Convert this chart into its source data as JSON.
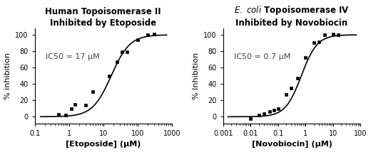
{
  "plot1": {
    "title_line1": "Human Topoisomerase II",
    "title_line2": "Inhibited by Etoposide",
    "xlabel": "[Etoposide] (μM)",
    "ylabel": "% inhibition",
    "ic50_text": "IC50 = 17 μM",
    "ic50": 17.0,
    "hill": 1.6,
    "xmin": 0.1,
    "xmax": 1000,
    "ymin": -8,
    "ymax": 108,
    "data_x": [
      0.5,
      0.8,
      1.2,
      1.5,
      3.0,
      5.0,
      15.0,
      25.0,
      35.0,
      50.0,
      100.0,
      200.0,
      300.0
    ],
    "data_y": [
      3,
      2,
      10,
      15,
      14,
      31,
      50,
      67,
      79,
      79,
      94,
      100,
      101
    ]
  },
  "plot2": {
    "title_line2": "Inhibited by Novobiocin",
    "xlabel": "[Novobiocin] (μM)",
    "ylabel": "% Inhibition",
    "ic50_text": "IC50 = 0.7 μM",
    "ic50": 0.7,
    "hill": 1.5,
    "xmin": 0.001,
    "xmax": 100,
    "ymin": -8,
    "ymax": 108,
    "data_x": [
      0.01,
      0.02,
      0.03,
      0.05,
      0.07,
      0.1,
      0.2,
      0.3,
      0.5,
      1.0,
      2.0,
      3.0,
      5.0,
      10.0,
      15.0
    ],
    "data_y": [
      -2,
      2,
      4,
      6,
      8,
      10,
      27,
      35,
      47,
      72,
      90,
      91,
      100,
      101,
      100
    ]
  },
  "bg_color": "#ffffff",
  "line_color": "#000000",
  "marker_color": "#000000",
  "text_color": "#444444",
  "title_fontsize": 8.5,
  "label_fontsize": 8,
  "tick_fontsize": 7,
  "annotation_fontsize": 8
}
